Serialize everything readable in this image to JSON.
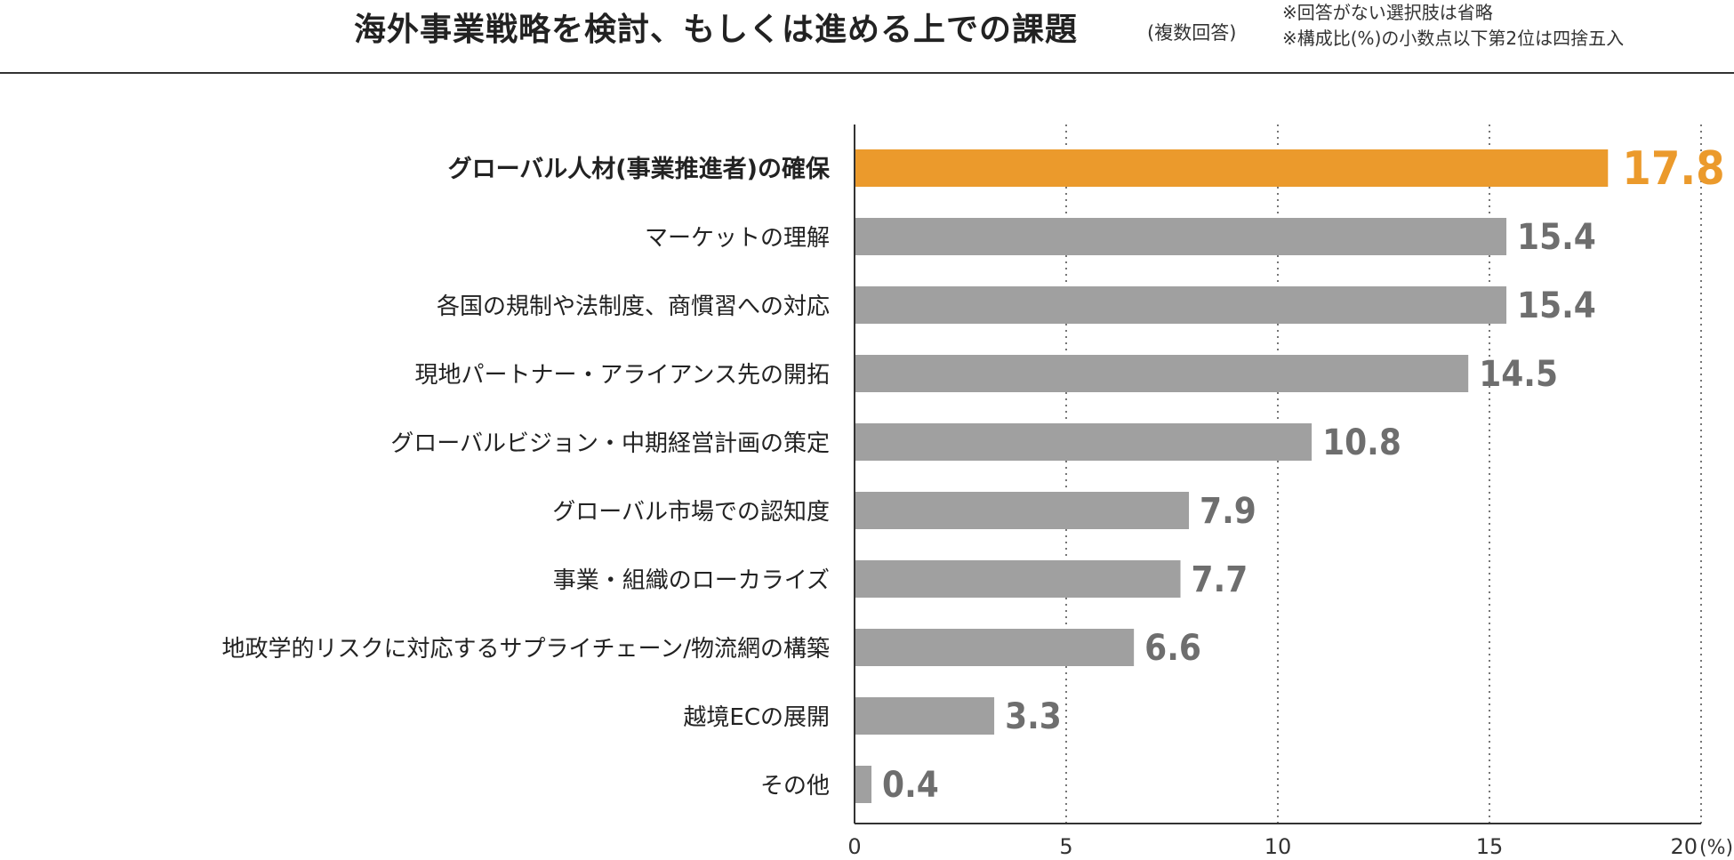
{
  "header": {
    "title": "海外事業戦略を検討、もしくは進める上での課題",
    "subtitle": "(複数回答)",
    "notes": [
      "※回答がない選択肢は省略",
      "※構成比(%)の小数点以下第2位は四捨五入"
    ]
  },
  "colors": {
    "highlight": "#EB9A2C",
    "bar": "#A0A0A0",
    "value_text": "#6E6E6E"
  },
  "chart_data": {
    "type": "bar",
    "orientation": "horizontal",
    "title": "海外事業戦略を検討、もしくは進める上での課題",
    "categories": [
      "グローバル人材(事業推進者)の確保",
      "マーケットの理解",
      "各国の規制や法制度、商慣習への対応",
      "現地パートナー・アライアンス先の開拓",
      "グローバルビジョン・中期経営計画の策定",
      "グローバル市場での認知度",
      "事業・組織のローカライズ",
      "地政学的リスクに対応するサプライチェーン/物流網の構築",
      "越境ECの展開",
      "その他"
    ],
    "values": [
      17.8,
      15.4,
      15.4,
      14.5,
      10.8,
      7.9,
      7.7,
      6.6,
      3.3,
      0.4
    ],
    "value_labels": [
      "17.8",
      "15.4",
      "15.4",
      "14.5",
      "10.8",
      "7.9",
      "7.7",
      "6.6",
      "3.3",
      "0.4"
    ],
    "highlight_index": 0,
    "xlim": [
      0,
      20
    ],
    "xticks": [
      0,
      5,
      10,
      15,
      20
    ],
    "xtick_labels": [
      "0",
      "5",
      "10",
      "15",
      "20"
    ],
    "x_unit": "(%)",
    "grid": "vertical dotted"
  }
}
